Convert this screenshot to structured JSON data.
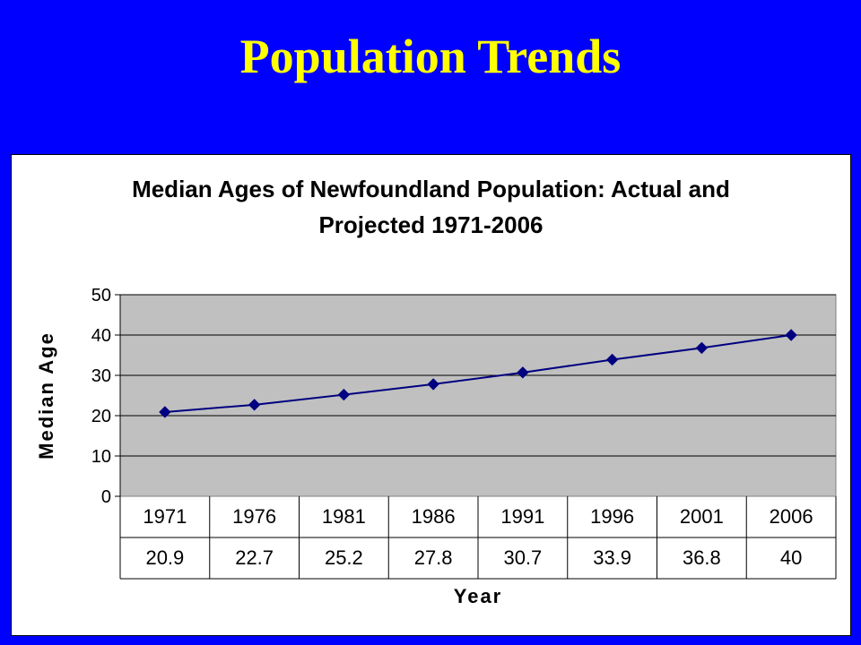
{
  "slide": {
    "title": "Population Trends"
  },
  "chart_data": {
    "type": "line",
    "title_line1": "Median Ages of Newfoundland Population: Actual and",
    "title_line2": "Projected 1971-2006",
    "xlabel": "Year",
    "ylabel": "Median Age",
    "categories": [
      "1971",
      "1976",
      "1981",
      "1986",
      "1991",
      "1996",
      "2001",
      "2006"
    ],
    "values": [
      20.9,
      22.7,
      25.2,
      27.8,
      30.7,
      33.9,
      36.8,
      40
    ],
    "value_labels": [
      "20.9",
      "22.7",
      "25.2",
      "27.8",
      "30.7",
      "33.9",
      "36.8",
      "40"
    ],
    "ylim": [
      0,
      50
    ],
    "yticks": [
      "0",
      "10",
      "20",
      "30",
      "40",
      "50"
    ],
    "grid": true,
    "data_table": true,
    "colors": {
      "line": "#000080",
      "marker": "#000080",
      "plot_background": "#c0c0c0",
      "gridline": "#000000"
    }
  }
}
